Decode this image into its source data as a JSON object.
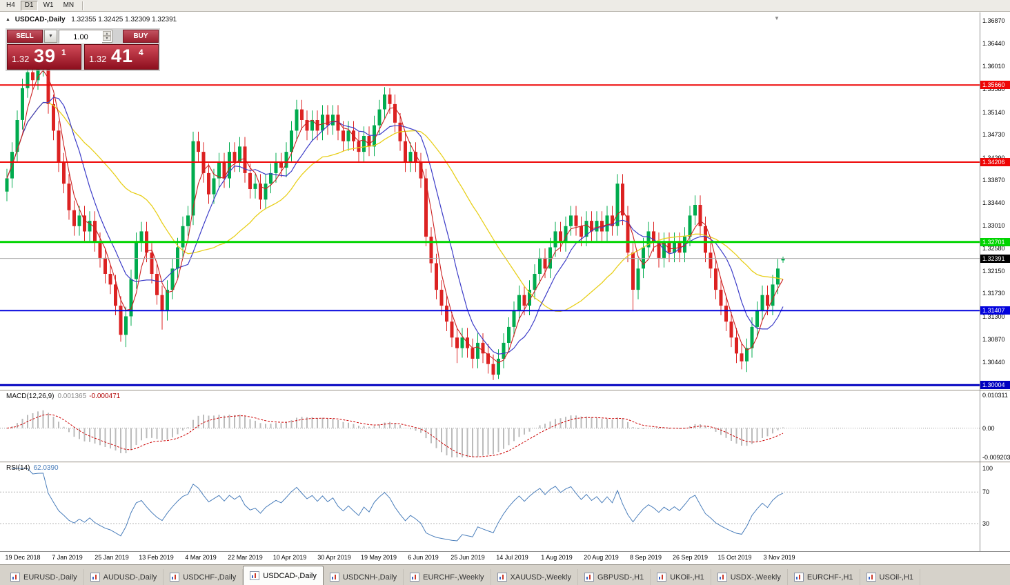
{
  "toolbar": {
    "periods": [
      {
        "label": "H4",
        "active": false
      },
      {
        "label": "D1",
        "active": true
      },
      {
        "label": "W1",
        "active": false
      },
      {
        "label": "MN",
        "active": false
      }
    ]
  },
  "header": {
    "collapse_icon": "▲",
    "title": "USDCAD-,Daily",
    "ohlc": "1.32355 1.32425 1.32309 1.32391"
  },
  "trade_panel": {
    "sell_label": "SELL",
    "buy_label": "BUY",
    "lot_value": "1.00",
    "dropdown_icon": "▼",
    "spinner_up": "▲",
    "spinner_down": "▼",
    "sell_price": {
      "prefix": "1.32",
      "pips": "39",
      "point": "1"
    },
    "buy_price": {
      "prefix": "1.32",
      "pips": "41",
      "point": "4"
    }
  },
  "shift_marker": "▼",
  "chart_data": {
    "type": "candlestick",
    "title": "USDCAD-,Daily",
    "ohlc_display": {
      "open": "1.32355",
      "high": "1.32425",
      "low": "1.32309",
      "close": "1.32391"
    },
    "price_axis": {
      "top": 1.3695,
      "bottom": 1.29915,
      "ticks": [
        "1.36870",
        "1.36440",
        "1.36010",
        "1.35580",
        "1.35140",
        "1.34730",
        "1.34290",
        "1.33870",
        "1.33440",
        "1.33010",
        "1.32580",
        "1.32150",
        "1.31730",
        "1.31300",
        "1.30870",
        "1.30440"
      ]
    },
    "x_labels": [
      "19 Dec 2018",
      "7 Jan 2019",
      "25 Jan 2019",
      "13 Feb 2019",
      "4 Mar 2019",
      "22 Mar 2019",
      "10 Apr 2019",
      "30 Apr 2019",
      "19 May 2019",
      "6 Jun 2019",
      "25 Jun 2019",
      "14 Jul 2019",
      "1 Aug 2019",
      "20 Aug 2019",
      "8 Sep 2019",
      "26 Sep 2019",
      "15 Oct 2019",
      "3 Nov 2019"
    ],
    "colors": {
      "up": "#00ab4e",
      "down": "#dc2222",
      "background": "#ffffff"
    },
    "levels": [
      {
        "price": 1.3566,
        "label": "1.35660",
        "color": "#ee0505",
        "width": 2
      },
      {
        "price": 1.34206,
        "label": "1.34206",
        "color": "#ee0505",
        "width": 2
      },
      {
        "price": 1.32701,
        "label": "1.32701",
        "color": "#00d400",
        "width": 3
      },
      {
        "price": 1.31407,
        "label": "1.31407",
        "color": "#0202dd",
        "width": 2
      },
      {
        "price": 1.30004,
        "label": "1.30004",
        "color": "#0000c0",
        "width": 3
      }
    ],
    "current_price": {
      "value": 1.32391,
      "label": "1.32391"
    },
    "moving_averages": [
      {
        "name": "slow-ma",
        "period": 26,
        "color": "#e8cf1a",
        "width": 1.3
      },
      {
        "name": "medium-ma",
        "period": 9,
        "color": "#3c3cc8",
        "width": 1.2
      },
      {
        "name": "fast-ma",
        "period": 4,
        "color": "#cc2020",
        "width": 1.1
      }
    ],
    "candles": [
      [
        1.3365,
        1.3408,
        1.3347,
        1.339
      ],
      [
        1.339,
        1.3458,
        1.3372,
        1.344
      ],
      [
        1.344,
        1.3518,
        1.3422,
        1.35
      ],
      [
        1.35,
        1.3578,
        1.3482,
        1.356
      ],
      [
        1.356,
        1.3605,
        1.3542,
        1.359
      ],
      [
        1.359,
        1.3602,
        1.3557,
        1.3575
      ],
      [
        1.3575,
        1.3615,
        1.3557,
        1.36
      ],
      [
        1.36,
        1.3618,
        1.3582,
        1.361
      ],
      [
        1.361,
        1.3618,
        1.3512,
        1.353
      ],
      [
        1.353,
        1.3548,
        1.3462,
        1.348
      ],
      [
        1.348,
        1.3498,
        1.3402,
        1.342
      ],
      [
        1.342,
        1.3438,
        1.3362,
        1.338
      ],
      [
        1.338,
        1.3398,
        1.3312,
        1.333
      ],
      [
        1.333,
        1.3348,
        1.3282,
        1.33
      ],
      [
        1.33,
        1.3338,
        1.3282,
        1.332
      ],
      [
        1.332,
        1.3338,
        1.3272,
        1.329
      ],
      [
        1.329,
        1.3328,
        1.3272,
        1.331
      ],
      [
        1.331,
        1.3328,
        1.3252,
        1.327
      ],
      [
        1.327,
        1.3288,
        1.3222,
        1.324
      ],
      [
        1.324,
        1.3258,
        1.3192,
        1.321
      ],
      [
        1.321,
        1.3228,
        1.3172,
        1.319
      ],
      [
        1.319,
        1.3208,
        1.3132,
        1.315
      ],
      [
        1.315,
        1.3168,
        1.3082,
        1.3095
      ],
      [
        1.3095,
        1.3148,
        1.3072,
        1.313
      ],
      [
        1.313,
        1.3218,
        1.3112,
        1.32
      ],
      [
        1.32,
        1.3288,
        1.3182,
        1.327
      ],
      [
        1.327,
        1.3308,
        1.3252,
        1.329
      ],
      [
        1.329,
        1.3308,
        1.3232,
        1.325
      ],
      [
        1.325,
        1.3268,
        1.3192,
        1.321
      ],
      [
        1.321,
        1.3228,
        1.3152,
        1.317
      ],
      [
        1.317,
        1.3188,
        1.3105,
        1.314
      ],
      [
        1.314,
        1.3198,
        1.3122,
        1.318
      ],
      [
        1.318,
        1.3238,
        1.3162,
        1.322
      ],
      [
        1.322,
        1.3278,
        1.3202,
        1.326
      ],
      [
        1.326,
        1.3318,
        1.3242,
        1.33
      ],
      [
        1.33,
        1.3338,
        1.3282,
        1.332
      ],
      [
        1.332,
        1.3478,
        1.3302,
        1.346
      ],
      [
        1.346,
        1.3478,
        1.3422,
        1.344
      ],
      [
        1.344,
        1.3458,
        1.3382,
        1.34
      ],
      [
        1.34,
        1.3418,
        1.3342,
        1.336
      ],
      [
        1.336,
        1.3408,
        1.3342,
        1.339
      ],
      [
        1.339,
        1.3438,
        1.3372,
        1.342
      ],
      [
        1.342,
        1.3438,
        1.3372,
        1.339
      ],
      [
        1.339,
        1.3458,
        1.3372,
        1.344
      ],
      [
        1.344,
        1.3458,
        1.3402,
        1.342
      ],
      [
        1.342,
        1.3468,
        1.3402,
        1.345
      ],
      [
        1.345,
        1.3468,
        1.3382,
        1.34
      ],
      [
        1.34,
        1.3418,
        1.3352,
        1.337
      ],
      [
        1.337,
        1.3398,
        1.3352,
        1.338
      ],
      [
        1.338,
        1.3398,
        1.3332,
        1.335
      ],
      [
        1.335,
        1.3398,
        1.3332,
        1.338
      ],
      [
        1.338,
        1.3418,
        1.3362,
        1.34
      ],
      [
        1.34,
        1.3438,
        1.3382,
        1.342
      ],
      [
        1.342,
        1.3438,
        1.3392,
        1.341
      ],
      [
        1.341,
        1.3458,
        1.3392,
        1.344
      ],
      [
        1.344,
        1.3498,
        1.3422,
        1.348
      ],
      [
        1.348,
        1.3538,
        1.3462,
        1.352
      ],
      [
        1.352,
        1.3538,
        1.3482,
        1.35
      ],
      [
        1.35,
        1.3518,
        1.3462,
        1.348
      ],
      [
        1.348,
        1.3518,
        1.3462,
        1.35
      ],
      [
        1.35,
        1.3518,
        1.3462,
        1.348
      ],
      [
        1.348,
        1.3528,
        1.3462,
        1.351
      ],
      [
        1.351,
        1.3528,
        1.3472,
        1.349
      ],
      [
        1.349,
        1.3528,
        1.3472,
        1.351
      ],
      [
        1.351,
        1.3528,
        1.3462,
        1.348
      ],
      [
        1.348,
        1.3498,
        1.3442,
        1.346
      ],
      [
        1.346,
        1.3498,
        1.3442,
        1.348
      ],
      [
        1.348,
        1.3498,
        1.3442,
        1.346
      ],
      [
        1.346,
        1.3478,
        1.3422,
        1.344
      ],
      [
        1.344,
        1.3488,
        1.3422,
        1.347
      ],
      [
        1.347,
        1.3488,
        1.3432,
        1.345
      ],
      [
        1.345,
        1.3508,
        1.3432,
        1.349
      ],
      [
        1.349,
        1.3538,
        1.3472,
        1.352
      ],
      [
        1.352,
        1.3562,
        1.3502,
        1.3548
      ],
      [
        1.3548,
        1.356,
        1.3512,
        1.353
      ],
      [
        1.353,
        1.3548,
        1.3477,
        1.3495
      ],
      [
        1.3495,
        1.3513,
        1.3442,
        1.346
      ],
      [
        1.346,
        1.3478,
        1.3402,
        1.342
      ],
      [
        1.342,
        1.3458,
        1.3402,
        1.344
      ],
      [
        1.344,
        1.3458,
        1.3402,
        1.342
      ],
      [
        1.342,
        1.3438,
        1.3372,
        1.339
      ],
      [
        1.339,
        1.3408,
        1.3262,
        1.328
      ],
      [
        1.328,
        1.3298,
        1.3212,
        1.323
      ],
      [
        1.323,
        1.3248,
        1.3162,
        1.318
      ],
      [
        1.318,
        1.3198,
        1.3132,
        1.315
      ],
      [
        1.315,
        1.3168,
        1.3102,
        1.312
      ],
      [
        1.312,
        1.3138,
        1.3072,
        1.309
      ],
      [
        1.309,
        1.3108,
        1.3042,
        1.307
      ],
      [
        1.307,
        1.3108,
        1.3052,
        1.309
      ],
      [
        1.309,
        1.3108,
        1.3052,
        1.307
      ],
      [
        1.307,
        1.3088,
        1.3032,
        1.305
      ],
      [
        1.305,
        1.3098,
        1.3032,
        1.308
      ],
      [
        1.308,
        1.3098,
        1.3042,
        1.306
      ],
      [
        1.306,
        1.3078,
        1.3022,
        1.304
      ],
      [
        1.304,
        1.3058,
        1.301,
        1.302
      ],
      [
        1.302,
        1.3068,
        1.3012,
        1.305
      ],
      [
        1.305,
        1.3098,
        1.3032,
        1.308
      ],
      [
        1.308,
        1.3128,
        1.3062,
        1.311
      ],
      [
        1.311,
        1.3158,
        1.3092,
        1.314
      ],
      [
        1.314,
        1.3188,
        1.3122,
        1.317
      ],
      [
        1.317,
        1.3188,
        1.3132,
        1.315
      ],
      [
        1.315,
        1.3198,
        1.3132,
        1.318
      ],
      [
        1.318,
        1.3228,
        1.3162,
        1.321
      ],
      [
        1.321,
        1.3258,
        1.3192,
        1.324
      ],
      [
        1.324,
        1.3258,
        1.3202,
        1.322
      ],
      [
        1.322,
        1.3278,
        1.3202,
        1.326
      ],
      [
        1.326,
        1.3308,
        1.3242,
        1.329
      ],
      [
        1.329,
        1.3308,
        1.3252,
        1.327
      ],
      [
        1.327,
        1.3318,
        1.3252,
        1.33
      ],
      [
        1.33,
        1.3338,
        1.3282,
        1.332
      ],
      [
        1.332,
        1.3338,
        1.3282,
        1.33
      ],
      [
        1.33,
        1.3318,
        1.3262,
        1.328
      ],
      [
        1.328,
        1.3328,
        1.3262,
        1.331
      ],
      [
        1.331,
        1.3328,
        1.3272,
        1.329
      ],
      [
        1.329,
        1.3328,
        1.3272,
        1.331
      ],
      [
        1.331,
        1.3328,
        1.3272,
        1.329
      ],
      [
        1.329,
        1.3338,
        1.3272,
        1.332
      ],
      [
        1.332,
        1.3338,
        1.3282,
        1.33
      ],
      [
        1.33,
        1.3398,
        1.3282,
        1.338
      ],
      [
        1.338,
        1.3398,
        1.3302,
        1.332
      ],
      [
        1.332,
        1.3338,
        1.3232,
        1.325
      ],
      [
        1.325,
        1.3268,
        1.3141,
        1.318
      ],
      [
        1.318,
        1.3238,
        1.3162,
        1.322
      ],
      [
        1.322,
        1.3278,
        1.3202,
        1.326
      ],
      [
        1.326,
        1.3308,
        1.3242,
        1.329
      ],
      [
        1.329,
        1.3308,
        1.3252,
        1.327
      ],
      [
        1.327,
        1.3288,
        1.3222,
        1.324
      ],
      [
        1.324,
        1.3288,
        1.3222,
        1.327
      ],
      [
        1.327,
        1.3288,
        1.3232,
        1.325
      ],
      [
        1.325,
        1.3288,
        1.3232,
        1.327
      ],
      [
        1.327,
        1.3288,
        1.3232,
        1.325
      ],
      [
        1.325,
        1.3298,
        1.3232,
        1.328
      ],
      [
        1.328,
        1.3338,
        1.3262,
        1.332
      ],
      [
        1.332,
        1.3358,
        1.3302,
        1.334
      ],
      [
        1.334,
        1.3358,
        1.3282,
        1.33
      ],
      [
        1.33,
        1.3318,
        1.3232,
        1.325
      ],
      [
        1.325,
        1.3268,
        1.3202,
        1.322
      ],
      [
        1.322,
        1.3238,
        1.3162,
        1.318
      ],
      [
        1.318,
        1.3198,
        1.3132,
        1.315
      ],
      [
        1.315,
        1.3168,
        1.3102,
        1.312
      ],
      [
        1.312,
        1.3138,
        1.3072,
        1.309
      ],
      [
        1.309,
        1.3108,
        1.3042,
        1.306
      ],
      [
        1.306,
        1.3078,
        1.303,
        1.3045
      ],
      [
        1.3045,
        1.3088,
        1.3025,
        1.307
      ],
      [
        1.307,
        1.3128,
        1.3052,
        1.311
      ],
      [
        1.311,
        1.3158,
        1.3092,
        1.314
      ],
      [
        1.314,
        1.3188,
        1.3122,
        1.317
      ],
      [
        1.317,
        1.3188,
        1.3132,
        1.315
      ],
      [
        1.315,
        1.3208,
        1.3132,
        1.319
      ],
      [
        1.319,
        1.3238,
        1.3172,
        1.322
      ],
      [
        1.32355,
        1.32425,
        1.32309,
        1.32391
      ]
    ],
    "macd": {
      "label_text": "MACD(12,26,9)",
      "value_main": "0.001365",
      "value_signal": "-0.000471",
      "scale_max": 0.010311,
      "scale_min": -0.009203,
      "axis_labels": [
        "0.010311",
        "0.00",
        "-0.009203"
      ],
      "hist_color": "#bbbbbb",
      "signal_color": "#cc0000"
    },
    "rsi": {
      "label_text": "RSI(14)",
      "value_text": "62.0390",
      "levels": [
        70,
        30
      ],
      "axis_labels": [
        "100",
        "70",
        "30"
      ],
      "color": "#4a7ebb"
    }
  },
  "tabs": [
    {
      "label": "EURUSD-,Daily",
      "active": false
    },
    {
      "label": "AUDUSD-,Daily",
      "active": false
    },
    {
      "label": "USDCHF-,Daily",
      "active": false
    },
    {
      "label": "USDCAD-,Daily",
      "active": true
    },
    {
      "label": "USDCNH-,Daily",
      "active": false
    },
    {
      "label": "EURCHF-,Weekly",
      "active": false
    },
    {
      "label": "XAUUSD-,Weekly",
      "active": false
    },
    {
      "label": "GBPUSD-,H1",
      "active": false
    },
    {
      "label": "UKOil-,H1",
      "active": false
    },
    {
      "label": "USDX-,Weekly",
      "active": false
    },
    {
      "label": "EURCHF-,H1",
      "active": false
    },
    {
      "label": "USOil-,H1",
      "active": false
    }
  ]
}
